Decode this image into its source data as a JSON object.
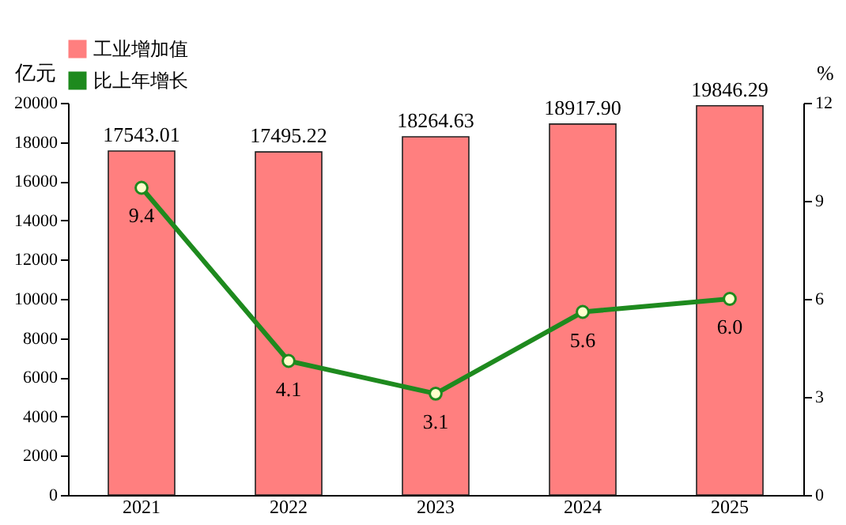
{
  "chart_data": {
    "type": "bar",
    "categories": [
      "2021",
      "2022",
      "2023",
      "2024",
      "2025"
    ],
    "series": [
      {
        "name": "工业增加值",
        "color": "#ff7f7f",
        "values": [
          17543.01,
          17495.22,
          18264.63,
          18917.9,
          19846.29
        ],
        "value_labels": [
          "17543.01",
          "17495.22",
          "18264.63",
          "18917.90",
          "19846.29"
        ]
      },
      {
        "name": "比上年增长",
        "type": "line",
        "axis": "y2",
        "color": "#1e8a1e",
        "values": [
          9.4,
          4.1,
          3.1,
          5.6,
          6.0
        ],
        "value_labels": [
          "9.4",
          "4.1",
          "3.1",
          "5.6",
          "6.0"
        ]
      }
    ],
    "ylabel": "亿元",
    "y2label": "%",
    "ylim": [
      0,
      20000
    ],
    "yticks": [
      0,
      2000,
      4000,
      6000,
      8000,
      10000,
      12000,
      14000,
      16000,
      18000,
      20000
    ],
    "y2lim": [
      0,
      12
    ],
    "y2ticks": [
      0,
      3,
      6,
      9,
      12
    ],
    "legend": "top left",
    "marker": "circle",
    "line_style": "solid",
    "grid": false
  }
}
